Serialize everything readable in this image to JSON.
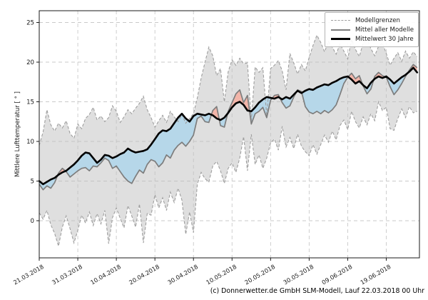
{
  "figure": {
    "footer": "(c) Donnerwetter.de GmbH SLM-Modell, Lauf 22.03.2018 00 Uhr",
    "background": "#ffffff"
  },
  "legend": {
    "position": "top-right",
    "items": [
      {
        "label": "Modellgrenzen",
        "style": "dashed",
        "color": "#9e9e9e"
      },
      {
        "label": "Mittel aller Modelle",
        "style": "solid",
        "color": "#7d7d7d"
      },
      {
        "label": "Mittelwert 30 Jahre",
        "style": "solid-thick",
        "color": "#000000"
      }
    ]
  },
  "chart_data": {
    "type": "line",
    "title": "",
    "xlabel": "",
    "ylabel": "Mittlere Lufttemperatur [ ° ]",
    "grid": true,
    "legend_position": "top-right",
    "y_ticks": [
      0,
      5,
      10,
      15,
      20,
      25
    ],
    "ylim": [
      -4.7,
      26.5
    ],
    "x_tick_days": [
      0,
      10,
      20,
      30,
      40,
      50,
      60,
      70,
      80,
      90
    ],
    "x_tick_labels": [
      "21.03.2018",
      "31.03.2018",
      "10.04.2018",
      "20.04.2018",
      "30.04.2018",
      "10.05.2018",
      "20.05.2018",
      "30.05.2018",
      "09.06.2018",
      "19.06.2018"
    ],
    "xlim_days": [
      0,
      98.6
    ],
    "colors": {
      "band_fill": "#bfbfbf",
      "band_edge": "#9e9e9e",
      "model_mean": "#7d7d7d",
      "climate_mean": "#000000",
      "fill_cool": "#b6d7e9",
      "fill_warm": "#f2b5a9",
      "grid": "#c9c9c9",
      "frame": "#1a1a1a"
    },
    "series": [
      {
        "name": "Modellgrenzen (oben)",
        "role": "upper",
        "values": [
          9.5,
          11.2,
          14.0,
          12.1,
          11.3,
          12.3,
          11.7,
          12.6,
          11.0,
          10.4,
          12.2,
          11.6,
          12.9,
          13.4,
          14.3,
          12.7,
          13.2,
          12.5,
          13.0,
          14.5,
          13.8,
          12.4,
          13.1,
          14.0,
          13.5,
          14.2,
          14.8,
          15.7,
          14.0,
          13.0,
          11.8,
          12.6,
          13.3,
          12.4,
          13.8,
          13.1,
          12.5,
          13.4,
          12.3,
          12.9,
          13.5,
          15.5,
          18.0,
          20.0,
          21.9,
          20.8,
          18.3,
          19.2,
          15.0,
          18.8,
          20.3,
          19.6,
          20.5,
          19.8,
          19.9,
          12.6,
          19.4,
          18.7,
          19.3,
          13.2,
          19.2,
          19.6,
          20.2,
          18.9,
          16.5,
          21.1,
          19.9,
          18.5,
          19.7,
          18.9,
          20.6,
          22.1,
          23.4,
          22.5,
          21.3,
          22.6,
          21.9,
          21.0,
          22.3,
          21.4,
          20.4,
          22.9,
          21.6,
          20.7,
          22.4,
          23.1,
          21.7,
          20.8,
          22.0,
          22.4,
          21.1,
          19.6,
          20.5,
          21.2,
          20.1,
          21.4,
          20.5,
          21.3,
          20.7
        ]
      },
      {
        "name": "Modellgrenzen (unten)",
        "role": "lower",
        "values": [
          1.0,
          0.2,
          1.3,
          -0.5,
          -1.6,
          -3.2,
          -0.8,
          0.6,
          -1.0,
          -2.8,
          -1.2,
          0.7,
          -0.3,
          1.1,
          -0.6,
          0.9,
          -0.4,
          1.3,
          -2.9,
          0.4,
          1.6,
          0.3,
          -0.9,
          1.9,
          0.6,
          -0.8,
          2.1,
          -2.8,
          0.9,
          0.7,
          3.3,
          1.6,
          2.9,
          1.3,
          3.6,
          2.3,
          4.1,
          2.6,
          -1.7,
          1.1,
          -1.5,
          4.6,
          6.1,
          5.3,
          4.9,
          6.9,
          7.5,
          6.3,
          4.7,
          6.6,
          7.3,
          6.1,
          7.9,
          10.6,
          6.3,
          10.9,
          7.1,
          8.3,
          6.6,
          7.9,
          9.8,
          10.3,
          8.9,
          11.9,
          9.3,
          10.5,
          9.1,
          10.9,
          9.4,
          8.7,
          8.2,
          9.6,
          8.4,
          9.6,
          10.8,
          9.9,
          11.3,
          10.2,
          12.0,
          12.7,
          11.5,
          13.8,
          12.5,
          11.7,
          13.1,
          12.1,
          13.5,
          12.6,
          15.0,
          13.9,
          14.3,
          11.6,
          11.4,
          12.9,
          14.1,
          13.0,
          14.4,
          13.6,
          13.8
        ]
      },
      {
        "name": "Mittel aller Modelle",
        "role": "model_mean",
        "values": [
          4.6,
          3.9,
          4.4,
          4.1,
          4.8,
          6.0,
          6.6,
          6.2,
          5.5,
          5.9,
          6.3,
          6.6,
          6.7,
          6.3,
          6.9,
          6.8,
          7.3,
          7.9,
          7.6,
          6.6,
          6.9,
          6.2,
          5.5,
          5.0,
          4.7,
          5.6,
          6.4,
          6.0,
          7.1,
          7.7,
          7.5,
          6.8,
          7.3,
          8.3,
          7.9,
          8.9,
          9.5,
          9.9,
          9.4,
          10.0,
          10.8,
          12.9,
          13.2,
          12.5,
          12.4,
          13.9,
          14.4,
          12.0,
          11.8,
          13.8,
          14.9,
          16.0,
          16.5,
          14.9,
          15.8,
          12.2,
          13.5,
          13.8,
          14.3,
          13.0,
          15.2,
          15.8,
          15.9,
          14.9,
          14.2,
          14.5,
          15.6,
          16.5,
          16.3,
          14.4,
          13.7,
          13.5,
          13.8,
          13.5,
          13.9,
          13.6,
          14.0,
          14.6,
          15.9,
          17.3,
          18.1,
          18.6,
          17.9,
          18.3,
          17.0,
          16.0,
          16.6,
          18.2,
          18.7,
          18.3,
          18.1,
          16.9,
          15.9,
          16.5,
          17.3,
          18.2,
          19.0,
          19.7,
          19.3
        ]
      },
      {
        "name": "Mittelwert 30 Jahre",
        "role": "climate_mean",
        "values": [
          5.0,
          4.6,
          4.9,
          5.2,
          5.4,
          5.8,
          6.1,
          6.3,
          6.7,
          7.1,
          7.6,
          8.2,
          8.6,
          8.5,
          7.9,
          7.3,
          7.7,
          8.3,
          8.2,
          7.9,
          8.1,
          8.4,
          8.6,
          9.1,
          8.8,
          8.6,
          8.7,
          8.8,
          9.0,
          9.6,
          10.3,
          11.0,
          11.4,
          11.3,
          11.6,
          12.3,
          13.0,
          13.5,
          12.9,
          12.5,
          13.2,
          13.5,
          13.4,
          13.3,
          13.5,
          13.3,
          12.9,
          12.7,
          13.0,
          13.6,
          14.3,
          14.8,
          15.0,
          14.6,
          13.9,
          13.8,
          14.3,
          14.9,
          15.3,
          15.6,
          15.5,
          15.4,
          15.6,
          15.3,
          15.6,
          15.4,
          15.9,
          16.4,
          16.1,
          16.4,
          16.6,
          16.5,
          16.8,
          17.0,
          17.2,
          17.1,
          17.4,
          17.6,
          17.9,
          18.1,
          18.2,
          17.8,
          17.3,
          17.6,
          17.1,
          16.7,
          17.4,
          17.9,
          18.2,
          18.0,
          18.2,
          17.8,
          17.3,
          17.7,
          18.1,
          18.4,
          18.8,
          19.3,
          18.7
        ]
      }
    ]
  }
}
